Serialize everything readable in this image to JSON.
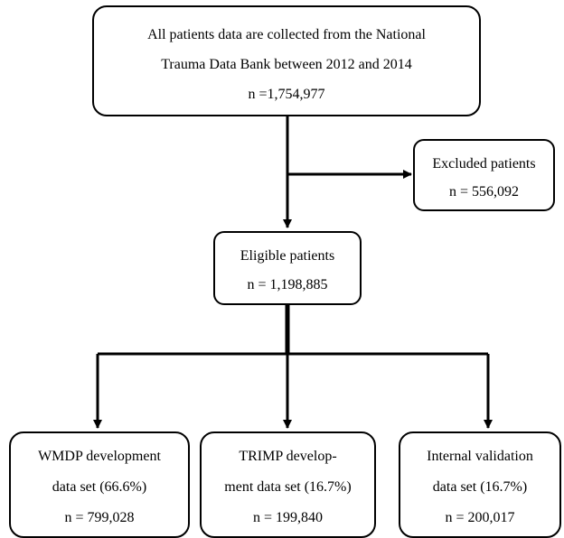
{
  "flowchart": {
    "source_box": {
      "lines": [
        "All patients data are collected from the National",
        "Trauma Data Bank between 2012 and 2014",
        "n =1,754,977"
      ]
    },
    "excluded_box": {
      "lines": [
        "Excluded patients",
        "n = 556,092"
      ]
    },
    "eligible_box": {
      "lines": [
        "Eligible patients",
        "n = 1,198,885"
      ]
    },
    "wmdp_box": {
      "lines": [
        "WMDP development",
        "data set (66.6%)",
        "n = 799,028"
      ]
    },
    "trimp_box": {
      "lines": [
        "TRIMP develop-",
        "ment data set (16.7%)",
        "n = 199,840"
      ]
    },
    "internal_box": {
      "lines": [
        "Internal validation",
        "data set (16.7%)",
        "n = 200,017"
      ]
    }
  }
}
